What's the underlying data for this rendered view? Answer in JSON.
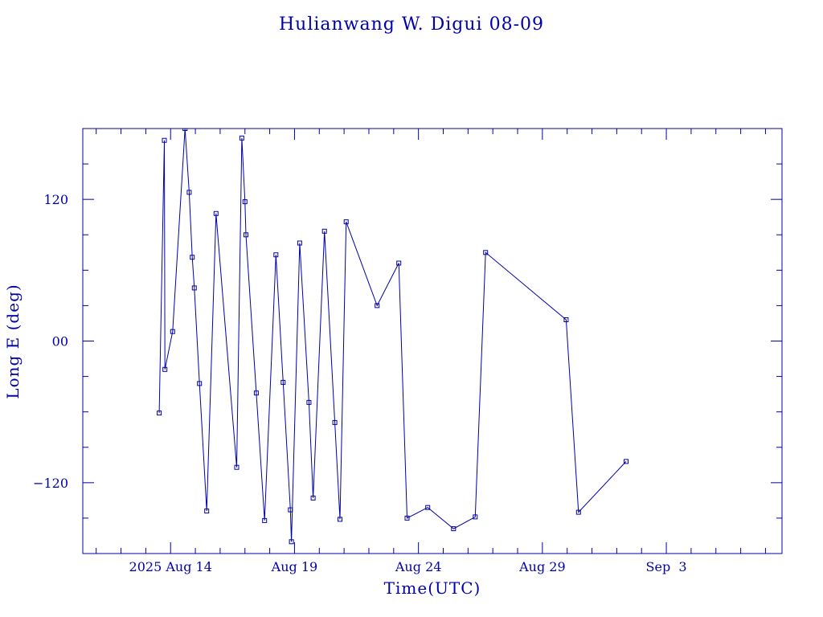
{
  "chart_data": {
    "type": "line",
    "title": "Hulianwang W. Digui 08-09",
    "xlabel": "Time(UTC)",
    "ylabel": "Long E (deg)",
    "ylim": [
      -180,
      180
    ],
    "xlim": [
      "2025-08-10T11:00",
      "2025-09-07T16:00"
    ],
    "x_tick_labels": [
      {
        "label": "2025 Aug 14",
        "t": "2025-08-14T00:00"
      },
      {
        "label": "Aug 19",
        "t": "2025-08-19T00:00"
      },
      {
        "label": "Aug 24",
        "t": "2025-08-24T00:00"
      },
      {
        "label": "Aug 29",
        "t": "2025-08-29T00:00"
      },
      {
        "label": "Sep  3",
        "t": "2025-09-03T00:00"
      }
    ],
    "y_ticks": [
      {
        "label": "-120",
        "value": -120
      },
      {
        "label": "00",
        "value": 0
      },
      {
        "label": "120",
        "value": 120
      }
    ],
    "y_minor_step": 30,
    "x_minor_days": 1,
    "grid": false,
    "legend": "none",
    "color": "#0000aa",
    "series": [
      {
        "points": [
          [
            "2025-08-13T13:00",
            -61
          ],
          [
            "2025-08-13T18:00",
            170
          ],
          [
            "2025-08-13T18:30",
            -24
          ],
          [
            "2025-08-14T02:00",
            8
          ],
          [
            "2025-08-14T14:00",
            180
          ],
          [
            "2025-08-14T18:00",
            126
          ],
          [
            "2025-08-14T21:00",
            71
          ],
          [
            "2025-08-14T23:00",
            45
          ],
          [
            "2025-08-15T04:00",
            -36
          ],
          [
            "2025-08-15T11:00",
            -144
          ],
          [
            "2025-08-15T20:00",
            108
          ],
          [
            "2025-08-16T16:00",
            -107
          ],
          [
            "2025-08-16T21:00",
            172
          ],
          [
            "2025-08-17T00:00",
            118
          ],
          [
            "2025-08-17T01:00",
            90
          ],
          [
            "2025-08-17T11:00",
            -44
          ],
          [
            "2025-08-17T19:00",
            -152
          ],
          [
            "2025-08-18T06:00",
            73
          ],
          [
            "2025-08-18T13:00",
            -35
          ],
          [
            "2025-08-18T20:00",
            -143
          ],
          [
            "2025-08-18T21:00",
            -170
          ],
          [
            "2025-08-19T05:00",
            83
          ],
          [
            "2025-08-19T14:00",
            -52
          ],
          [
            "2025-08-19T18:00",
            -133
          ],
          [
            "2025-08-20T05:00",
            93
          ],
          [
            "2025-08-20T15:00",
            -69
          ],
          [
            "2025-08-20T20:00",
            -151
          ],
          [
            "2025-08-21T02:00",
            101
          ],
          [
            "2025-08-22T08:00",
            30
          ],
          [
            "2025-08-23T05:00",
            66
          ],
          [
            "2025-08-23T13:00",
            -150
          ],
          [
            "2025-08-24T09:00",
            -141
          ],
          [
            "2025-08-25T10:00",
            -159
          ],
          [
            "2025-08-26T07:00",
            -149
          ],
          [
            "2025-08-26T17:00",
            75
          ],
          [
            "2025-08-29T23:00",
            18
          ],
          [
            "2025-08-30T11:00",
            -145
          ],
          [
            "2025-09-01T09:00",
            -102
          ]
        ]
      }
    ]
  }
}
